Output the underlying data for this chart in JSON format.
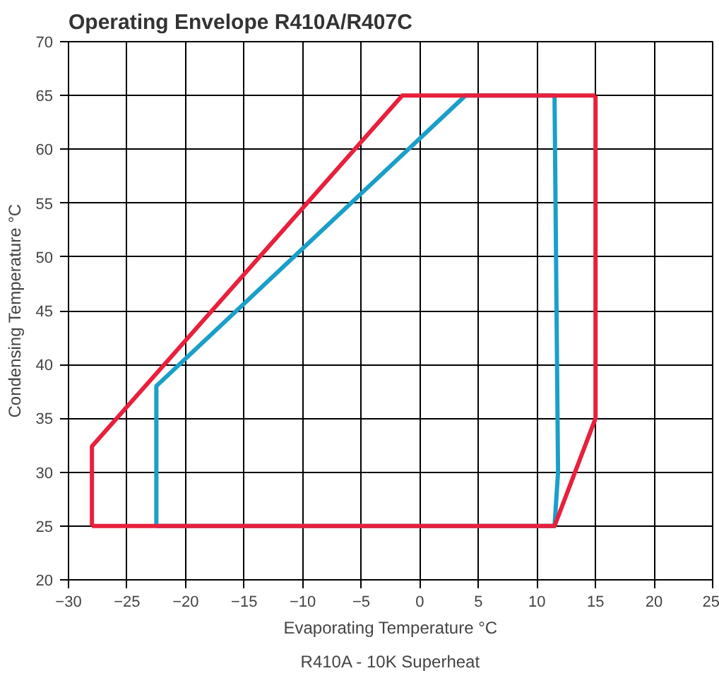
{
  "chart_data": {
    "type": "line",
    "title": "Operating Envelope R410A/R407C",
    "xlabel": "Evaporating Temperature °C",
    "ylabel": "Condensing Temperature °C",
    "annotations": [
      "R410A - 10K Superheat"
    ],
    "series": [
      {
        "color": "#1a9fc9",
        "x": [
          -22.5,
          -22.5,
          3.9,
          11.5
        ],
        "values": [
          25,
          38,
          65,
          65
        ]
      },
      {
        "color": "#1a9fc9",
        "x": [
          -22.5,
          11.5,
          11.8,
          11.5
        ],
        "values": [
          25,
          25,
          30,
          65
        ]
      },
      {
        "color": "#e8203c",
        "x": [
          -28,
          -28,
          -1.5,
          15
        ],
        "values": [
          25,
          32.4,
          65,
          65
        ]
      },
      {
        "color": "#e8203c",
        "x": [
          -28,
          11.5,
          15,
          15
        ],
        "values": [
          25,
          25,
          35,
          65
        ]
      }
    ],
    "xlim": [
      -30,
      25
    ],
    "ylim": [
      20,
      70
    ],
    "xticks": [
      -30,
      -25,
      -20,
      -15,
      -10,
      -5,
      0,
      5,
      10,
      15,
      20,
      25
    ],
    "yticks": [
      20,
      25,
      30,
      35,
      40,
      45,
      50,
      55,
      60,
      65,
      70
    ],
    "grid": true
  }
}
